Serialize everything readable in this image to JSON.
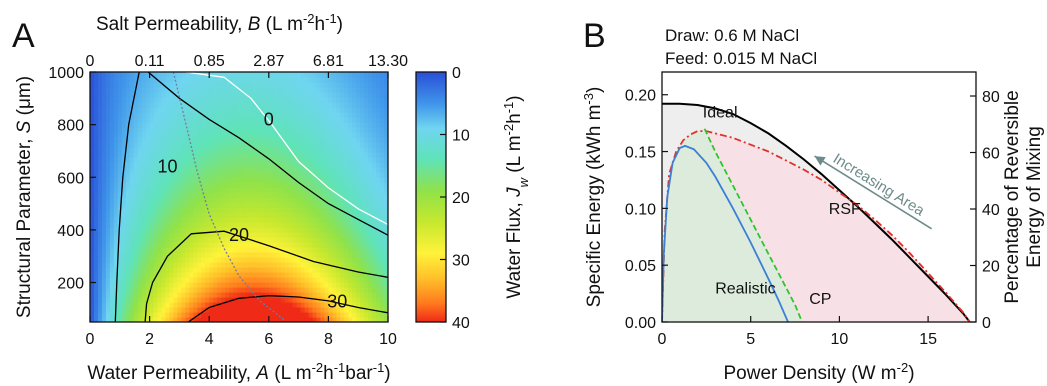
{
  "chart_data": [
    {
      "panel_label": "A",
      "type": "heatmap",
      "xlabel_parts": [
        "Water Permeability, ",
        "A",
        " (L m",
        "-2",
        "h",
        "-1",
        "bar",
        "-1",
        ")"
      ],
      "xlim": [
        0,
        10
      ],
      "xticks": [
        0,
        2,
        4,
        6,
        8,
        10
      ],
      "ylabel_parts": [
        "Structural Parameter, ",
        "S",
        " (μm)"
      ],
      "ylim": [
        50,
        1000
      ],
      "yticks": [
        200,
        400,
        600,
        800,
        1000
      ],
      "top_axis_label_parts": [
        "Salt Permeability, ",
        "B",
        " (L m",
        "-2",
        "h",
        "-1",
        ")"
      ],
      "top_axis": {
        "at_A": [
          0,
          2,
          4,
          6,
          8,
          10
        ],
        "tick_labels": [
          "0",
          "0.11",
          "0.85",
          "2.87",
          "6.81",
          "13.30"
        ]
      },
      "colorbar": {
        "label_parts": [
          "Water Flux, ",
          "J",
          "w",
          " (L m",
          "-2",
          "h",
          "-1",
          ")"
        ],
        "range": [
          0,
          40
        ],
        "ticks": [
          0,
          10,
          20,
          30,
          40
        ],
        "reversed": true,
        "stops": [
          {
            "value": 0,
            "color": "#2a4fd8"
          },
          {
            "value": 5,
            "color": "#3f94ea"
          },
          {
            "value": 9,
            "color": "#6fd5f0"
          },
          {
            "value": 14,
            "color": "#5fe3b8"
          },
          {
            "value": 19,
            "color": "#8fe24a"
          },
          {
            "value": 24,
            "color": "#c6e82e"
          },
          {
            "value": 29,
            "color": "#fff33a"
          },
          {
            "value": 33,
            "color": "#ffc02a"
          },
          {
            "value": 37,
            "color": "#ff7a1e"
          },
          {
            "value": 40,
            "color": "#ef2a16"
          }
        ]
      },
      "contours": [
        {
          "level": "0",
          "color": "#ffffff",
          "x": [
            3.2,
            4.5,
            5.4,
            6.1,
            7.0,
            8.0,
            9.0,
            10.0
          ],
          "y": [
            1000,
            980,
            900,
            800,
            660,
            560,
            480,
            420
          ],
          "label_pos": [
            6.0,
            820
          ]
        },
        {
          "level": "10",
          "color": "#000000",
          "x": [
            1.95,
            3.0,
            4.0,
            5.0,
            6.0,
            7.0,
            8.0,
            9.0,
            10.0
          ],
          "y": [
            1000,
            900,
            820,
            750,
            670,
            580,
            500,
            440,
            380
          ],
          "label_pos": [
            2.6,
            640
          ]
        },
        {
          "level": "10",
          "color": "#000000",
          "x": [
            0.85,
            0.9,
            0.98,
            1.1,
            1.3,
            1.65
          ],
          "y": [
            50,
            200,
            400,
            600,
            800,
            1000
          ],
          "label_pos": null
        },
        {
          "level": "20",
          "color": "#000000",
          "x": [
            1.85,
            1.9,
            2.1,
            2.6,
            3.4,
            4.5,
            6.0,
            7.5,
            9.0,
            10.0
          ],
          "y": [
            50,
            120,
            200,
            300,
            385,
            395,
            340,
            280,
            240,
            220
          ],
          "label_pos": [
            5.0,
            380
          ]
        },
        {
          "level": "30",
          "color": "#000000",
          "x": [
            3.3,
            4.0,
            5.0,
            6.0,
            7.0,
            8.0,
            9.0,
            10.0
          ],
          "y": [
            50,
            105,
            140,
            150,
            145,
            130,
            105,
            85
          ],
          "label_pos": [
            8.3,
            128
          ]
        }
      ],
      "dotted_line": {
        "x": [
          2.8,
          3.2,
          3.6,
          4.0,
          4.5,
          5.0,
          5.7,
          6.5
        ],
        "y": [
          1000,
          810,
          620,
          460,
          330,
          225,
          130,
          60
        ]
      }
    },
    {
      "panel_label": "B",
      "type": "line",
      "annotation_lines": [
        "Draw: 0.6 M NaCl",
        "Feed: 0.015 M NaCl"
      ],
      "xlabel_parts": [
        "Power Density (W m",
        "-2",
        ")"
      ],
      "xlim": [
        0,
        17.7
      ],
      "xticks": [
        0,
        5,
        10,
        15
      ],
      "ylabel_parts": [
        "Specific Energy (kWh m",
        "-3",
        ")"
      ],
      "ylim": [
        0,
        0.22
      ],
      "yticks": [
        0.0,
        0.05,
        0.1,
        0.15,
        0.2
      ],
      "y2label_lines": [
        "Percentage of Reversible",
        "Energy of Mixing"
      ],
      "y2lim": [
        0,
        88.5
      ],
      "y2ticks": [
        0,
        20,
        40,
        60,
        80
      ],
      "series": [
        {
          "name": "Ideal",
          "color": "#000000",
          "style": "solid",
          "x": [
            0,
            1,
            2,
            3,
            4,
            5,
            6,
            7,
            8,
            9,
            10,
            11,
            12,
            13,
            14,
            15,
            16,
            17,
            17.35
          ],
          "y": [
            0.192,
            0.192,
            0.191,
            0.188,
            0.183,
            0.175,
            0.166,
            0.155,
            0.143,
            0.13,
            0.116,
            0.102,
            0.087,
            0.072,
            0.056,
            0.04,
            0.024,
            0.007,
            0.0
          ],
          "fill": "#eeeeee",
          "label_pos": [
            2.3,
            0.18
          ]
        },
        {
          "name": "RSF",
          "color": "#e0302a",
          "style": "dashdot",
          "x": [
            0,
            0.15,
            0.4,
            0.8,
            1.2,
            1.6,
            2.0,
            2.5,
            3.0,
            4.0,
            5.0,
            6.0,
            7.0,
            8.0,
            9.0,
            10.0,
            11.0,
            12.0,
            13.0,
            14.0,
            15.0,
            16.0,
            17.0,
            17.35
          ],
          "y": [
            0.0,
            0.08,
            0.13,
            0.15,
            0.16,
            0.165,
            0.168,
            0.168,
            0.166,
            0.162,
            0.156,
            0.15,
            0.142,
            0.134,
            0.125,
            0.114,
            0.103,
            0.09,
            0.076,
            0.06,
            0.043,
            0.026,
            0.008,
            0.0
          ],
          "fill": "#f8e1e6",
          "label_pos": [
            9.4,
            0.095
          ]
        },
        {
          "name": "Realistic",
          "color": "#3c7fd6",
          "style": "solid",
          "x": [
            0,
            0.1,
            0.3,
            0.6,
            1.0,
            1.3,
            1.8,
            2.5,
            3.0,
            4.0,
            5.0,
            6.0,
            6.6,
            7.1
          ],
          "y": [
            0.0,
            0.06,
            0.11,
            0.14,
            0.153,
            0.155,
            0.152,
            0.14,
            0.128,
            0.1,
            0.07,
            0.038,
            0.018,
            0.0
          ],
          "fill": null,
          "label_pos": [
            3.0,
            0.025
          ]
        },
        {
          "name": "CP",
          "color": "#2ec62e",
          "style": "dashed",
          "x": [
            2.4,
            3.0,
            4.0,
            5.0,
            6.0,
            7.0,
            7.5,
            7.9
          ],
          "y": [
            0.17,
            0.15,
            0.12,
            0.09,
            0.06,
            0.03,
            0.015,
            0.0
          ],
          "fill": "#dcebdc",
          "label_pos": [
            8.3,
            0.016
          ]
        }
      ],
      "arrow_annotation": {
        "text": "Increasing Area",
        "color": "#6e8b8b",
        "from": [
          15.2,
          0.082
        ],
        "to": [
          8.6,
          0.146
        ]
      }
    }
  ]
}
